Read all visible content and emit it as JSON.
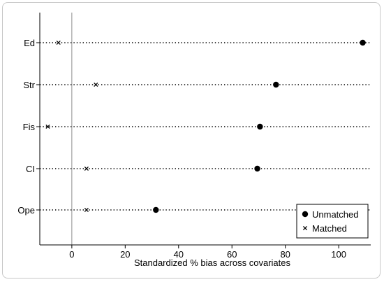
{
  "chart_data": {
    "type": "scatter",
    "title": "",
    "xlabel": "Standardized % bias across covariates",
    "ylabel": "",
    "xlim": [
      -12,
      112
    ],
    "xticks": [
      0,
      20,
      40,
      60,
      80,
      100
    ],
    "categories": [
      "Ed",
      "Str",
      "Fis",
      "CI",
      "Ope"
    ],
    "series": [
      {
        "name": "Unmatched",
        "marker": "circle",
        "values": [
          109,
          76.5,
          70.5,
          69.5,
          31.5
        ]
      },
      {
        "name": "Matched",
        "marker": "x",
        "values": [
          -5,
          9,
          -9,
          5.5,
          5.5
        ]
      }
    ],
    "reference_line_x": 0,
    "grid": false,
    "dotted_row_guides": true,
    "legend_position": "bottom-right",
    "colors": {
      "markers": "#000000",
      "reference_line": "#8c8c8c"
    }
  }
}
